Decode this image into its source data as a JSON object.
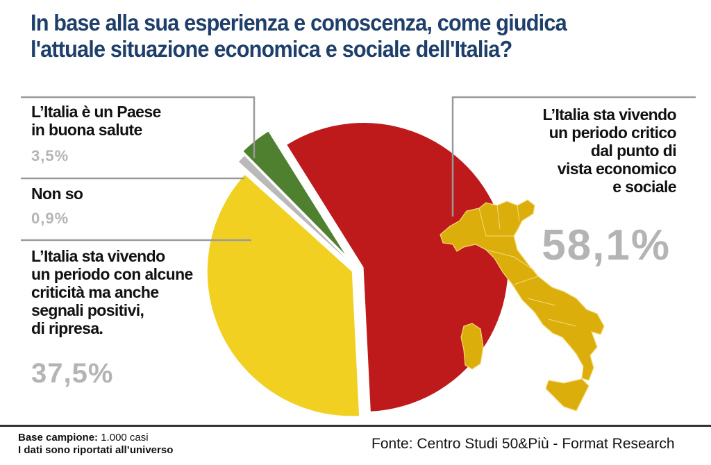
{
  "title": {
    "line1": "In base alla sua esperienza e conoscenza, come giudica",
    "line2": "l'attuale situazione economica e sociale dell'Italia?"
  },
  "chart_data": {
    "type": "pie",
    "title": "In base alla sua esperienza e conoscenza, come giudica l'attuale situazione economica e sociale dell'Italia?",
    "slices": [
      {
        "label": "L’Italia sta vivendo un periodo critico dal punto di vista economico e sociale",
        "value": 58.1,
        "display": "58,1%",
        "color": "#be1a1c"
      },
      {
        "label": "L’Italia sta vivendo un periodo con alcune criticità ma anche segnali positivi, di ripresa.",
        "value": 37.5,
        "display": "37,5%",
        "color": "#f2d022"
      },
      {
        "label": "Non so",
        "value": 0.9,
        "display": "0,9%",
        "color": "#b9b9b9"
      },
      {
        "label": "L’Italia è un Paese in buona salute",
        "value": 3.5,
        "display": "3,5%",
        "color": "#4e8030"
      }
    ],
    "exploded": true
  },
  "labels": {
    "good": {
      "lines": [
        "L’Italia è un Paese",
        "in buona salute"
      ],
      "pct": "3,5%"
    },
    "dontknow": {
      "lines": [
        "Non so"
      ],
      "pct": "0,9%"
    },
    "mixed": {
      "lines": [
        "L’Italia sta vivendo",
        "un periodo con alcune",
        "criticità ma anche",
        "segnali positivi,",
        "di ripresa."
      ],
      "pct": "37,5%"
    },
    "critical": {
      "lines": [
        "L’Italia sta vivendo",
        "un periodo critico",
        "dal punto di",
        "vista economico",
        "e sociale"
      ],
      "pct": "58,1%"
    }
  },
  "decor": {
    "map_icon": "italy-map-icon",
    "map_color": "#dcae0c"
  },
  "footer": {
    "base_label": "Base campione:",
    "base_value": " 1.000 casi",
    "note": "I dati sono riportati all’universo",
    "source": "Fonte: Centro Studi 50&Più - Format Research"
  }
}
